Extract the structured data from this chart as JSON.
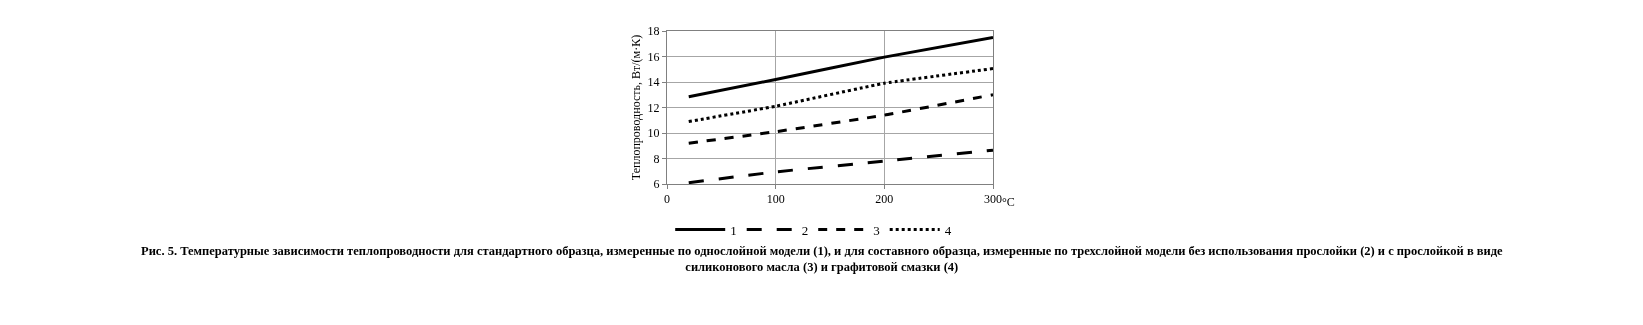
{
  "chart_data": {
    "type": "line",
    "ylabel": "Теплопроводность, Вт/(м·К)",
    "xlabel": "°C",
    "x": [
      20,
      100,
      200,
      300
    ],
    "series": [
      {
        "name": "1",
        "color": "#000000",
        "line_style": "solid",
        "values": [
          12.85,
          14.2,
          15.95,
          17.5
        ]
      },
      {
        "name": "2",
        "color": "#000000",
        "line_style": "longdash",
        "values": [
          6.1,
          6.95,
          7.8,
          8.65
        ]
      },
      {
        "name": "3",
        "color": "#000000",
        "line_style": "dashed",
        "values": [
          9.2,
          10.1,
          11.4,
          13.0
        ]
      },
      {
        "name": "4",
        "color": "#000000",
        "line_style": "dotted",
        "values": [
          10.9,
          12.1,
          13.9,
          15.05
        ]
      }
    ],
    "xlim": [
      0,
      300
    ],
    "xticks": [
      0,
      100,
      200,
      300
    ],
    "ylim": [
      6,
      18
    ],
    "yticks": [
      6,
      8,
      10,
      12,
      14,
      16,
      18
    ],
    "grid": true,
    "legend": "bottom",
    "marker": "none",
    "annotations": [
      "Рис. 5. Температурные зависимости теплопроводности для стандартного образца, измеренные по однослойной модели (1), и для составного образца, измеренные по трехслойной модели без использования прослойки (2) и с прослойкой в виде силиконового масла (3) и графитовой смазки (4)"
    ]
  }
}
